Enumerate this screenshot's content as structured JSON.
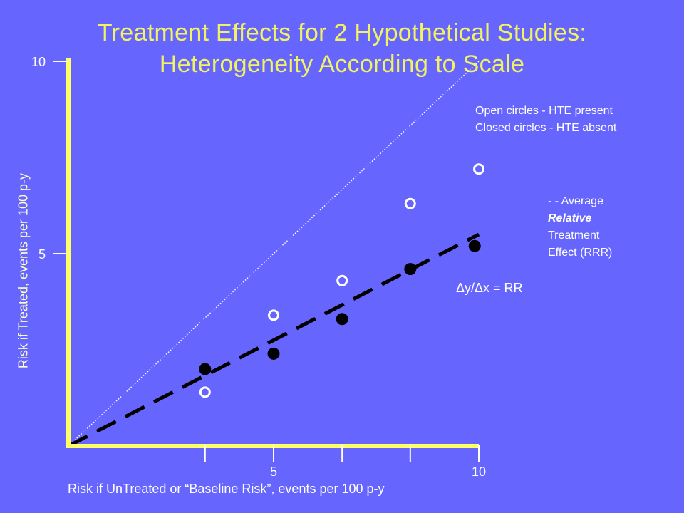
{
  "title_line1": "Treatment Effects for 2 Hypothetical Studies:",
  "title_line2": "Heterogeneity According to Scale",
  "legend_hte": {
    "open": "Open circles - HTE present",
    "closed": "Closed circles - HTE absent"
  },
  "legend_rrr": {
    "line1": "- - Average",
    "line2": "Relative",
    "line3": "Treatment",
    "line4": "Effect (RRR)"
  },
  "annotation": "Δy/Δx = RR",
  "xlabel_parts": {
    "pre": "Risk if ",
    "underlined": "Un",
    "post": "Treated or “Baseline Risk”, events per 100 p-y"
  },
  "colors": {
    "background": "#6666ff",
    "axis": "#ffff66",
    "title": "#f2f263",
    "marker": "#000000",
    "open_marker": "#ffffff"
  },
  "chart_data": {
    "type": "scatter",
    "xlabel": "Risk if UnTreated or “Baseline Risk”, events per 100 p-y",
    "ylabel": "Risk if Treated, events per 100 p-y",
    "xlim": [
      0,
      10
    ],
    "ylim": [
      0,
      10
    ],
    "x_ticks": [
      3.33,
      5,
      6.67,
      8.33,
      10
    ],
    "x_tick_labels": [
      {
        "value": 5,
        "label": "5"
      },
      {
        "value": 10,
        "label": "10"
      }
    ],
    "y_ticks": [
      {
        "value": 5,
        "label": "5"
      },
      {
        "value": 10,
        "label": "10"
      }
    ],
    "series": [
      {
        "name": "Open circles - HTE present",
        "marker": "open-circle",
        "points": [
          {
            "x": 3.33,
            "y": 1.4
          },
          {
            "x": 5.0,
            "y": 3.4
          },
          {
            "x": 6.67,
            "y": 4.3
          },
          {
            "x": 8.33,
            "y": 6.3
          },
          {
            "x": 10.0,
            "y": 7.2
          }
        ]
      },
      {
        "name": "Closed circles - HTE absent",
        "marker": "filled-circle",
        "points": [
          {
            "x": 3.33,
            "y": 2.0
          },
          {
            "x": 5.0,
            "y": 2.4
          },
          {
            "x": 6.67,
            "y": 3.3
          },
          {
            "x": 8.33,
            "y": 4.6
          },
          {
            "x": 9.9,
            "y": 5.2
          }
        ]
      }
    ],
    "reference_lines": [
      {
        "name": "identity",
        "style": "dotted",
        "from": {
          "x": 0,
          "y": 0
        },
        "to": {
          "x": 10,
          "y": 10
        }
      },
      {
        "name": "- - Average Relative Treatment Effect (RRR)",
        "style": "dashed",
        "from": {
          "x": 0,
          "y": 0
        },
        "to": {
          "x": 10,
          "y": 5.5
        }
      }
    ]
  }
}
